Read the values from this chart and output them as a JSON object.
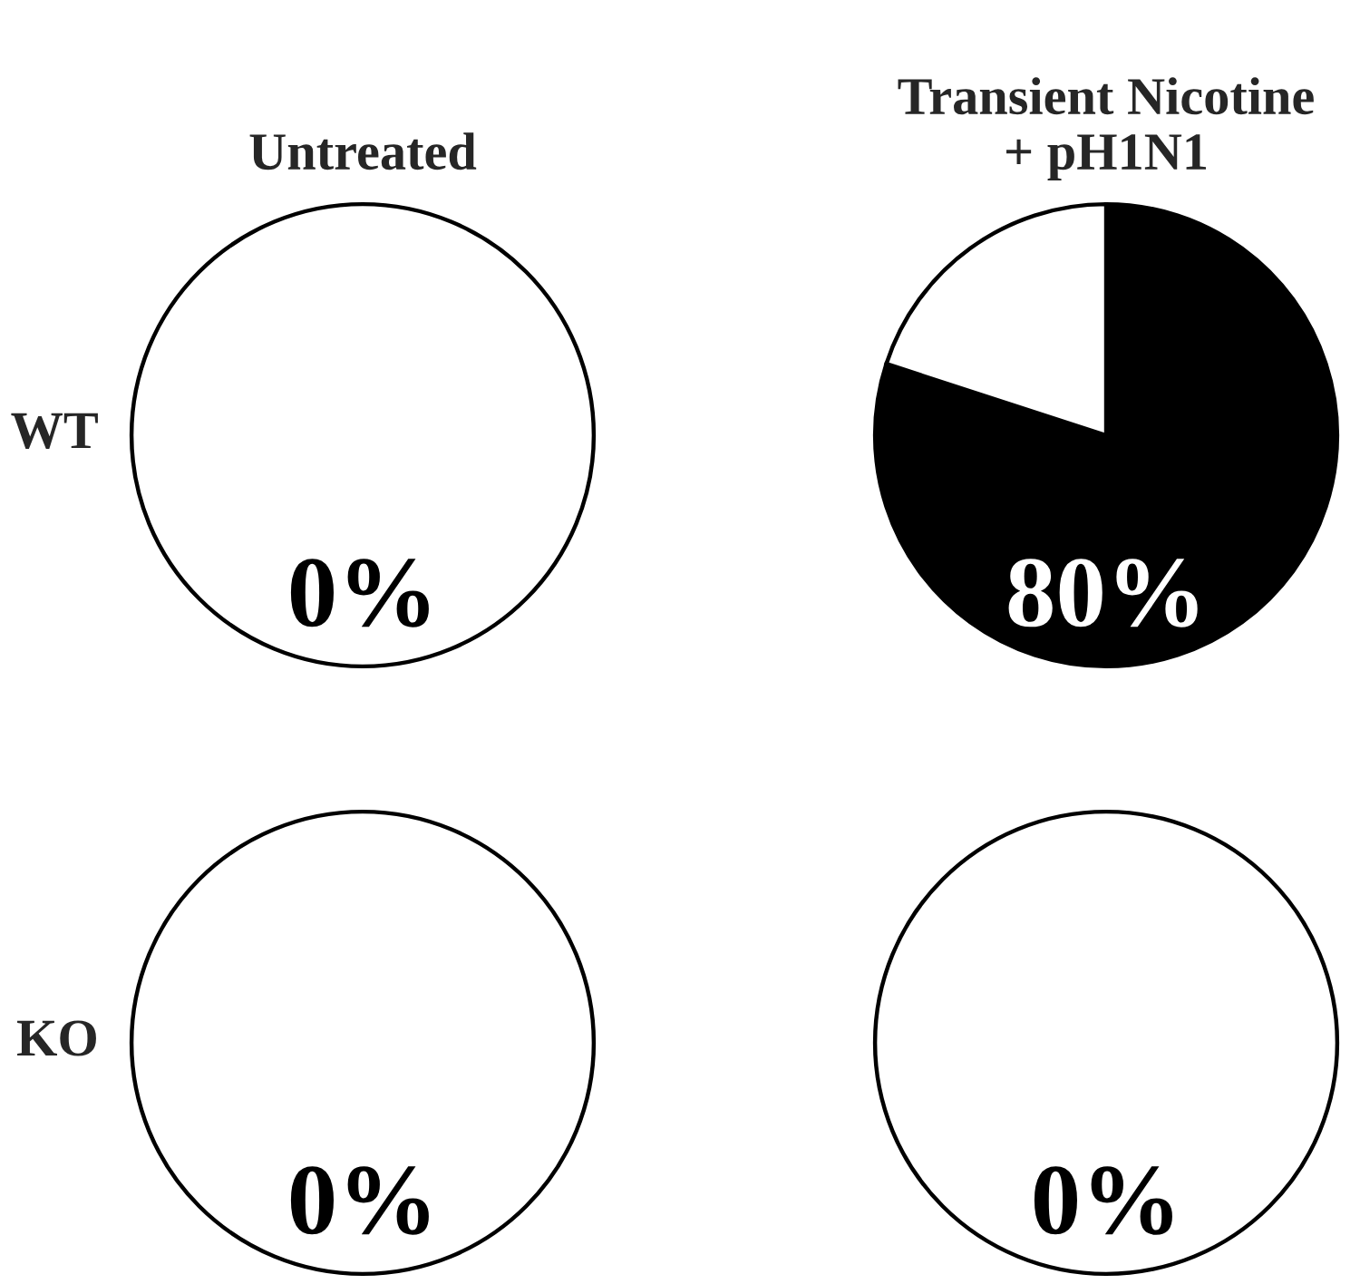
{
  "chart_data": [
    {
      "type": "pie",
      "title": "Untreated",
      "ylabel": "WT",
      "categories": [
        null,
        null
      ],
      "values": [
        0,
        100
      ],
      "colors": [
        "#000000",
        "#ffffff"
      ],
      "value_labels": [
        "0%",
        null
      ]
    },
    {
      "type": "pie",
      "title": "Transient Nicotine\n+ pH1N1",
      "categories": [
        null,
        null
      ],
      "values": [
        80,
        20
      ],
      "colors": [
        "#000000",
        "#ffffff"
      ],
      "value_labels": [
        "80%",
        null
      ]
    },
    {
      "type": "pie",
      "ylabel": "KO",
      "categories": [
        null,
        null
      ],
      "values": [
        0,
        100
      ],
      "colors": [
        "#000000",
        "#ffffff"
      ],
      "value_labels": [
        "0%",
        null
      ]
    },
    {
      "type": "pie",
      "categories": [
        null,
        null
      ],
      "values": [
        0,
        100
      ],
      "colors": [
        "#000000",
        "#ffffff"
      ],
      "value_labels": [
        "0%",
        null
      ]
    }
  ]
}
